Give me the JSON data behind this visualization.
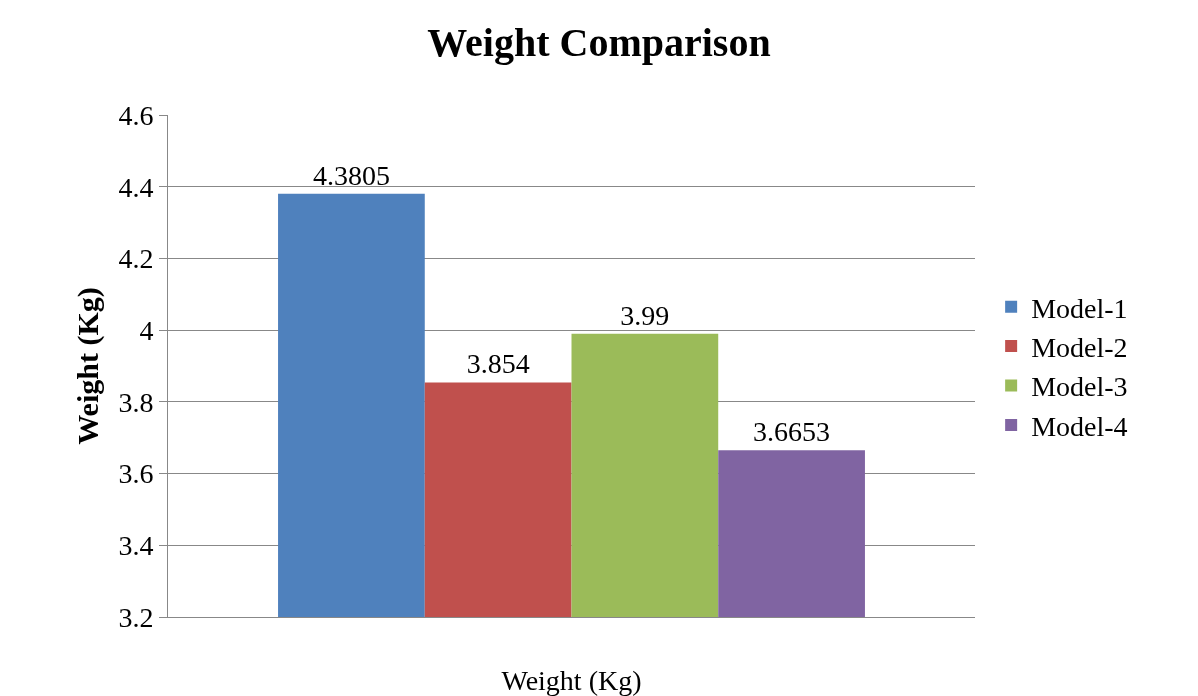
{
  "chart_data": {
    "type": "bar",
    "title": "Weight Comparison",
    "ylabel": "Weight (Kg)",
    "xlabel": "Weight (Kg)",
    "categories": [
      null,
      null,
      null,
      null
    ],
    "series": [
      {
        "name": "Model-1",
        "color": "#4f81bd",
        "values": [
          4.3805,
          null,
          null,
          null
        ]
      },
      {
        "name": "Model-2",
        "color": "#c0504d",
        "values": [
          null,
          3.854,
          null,
          null
        ]
      },
      {
        "name": "Model-3",
        "color": "#9bbb59",
        "values": [
          null,
          null,
          3.99,
          null
        ]
      },
      {
        "name": "Model-4",
        "color": "#8064a2",
        "values": [
          null,
          null,
          null,
          3.6653
        ]
      }
    ],
    "ylim": [
      3.2,
      4.6
    ],
    "yticks": [
      3.2,
      3.4,
      3.6,
      3.8,
      4,
      4.2,
      4.4,
      4.6
    ],
    "grid": "y",
    "legend": "right",
    "data_labels": true
  }
}
